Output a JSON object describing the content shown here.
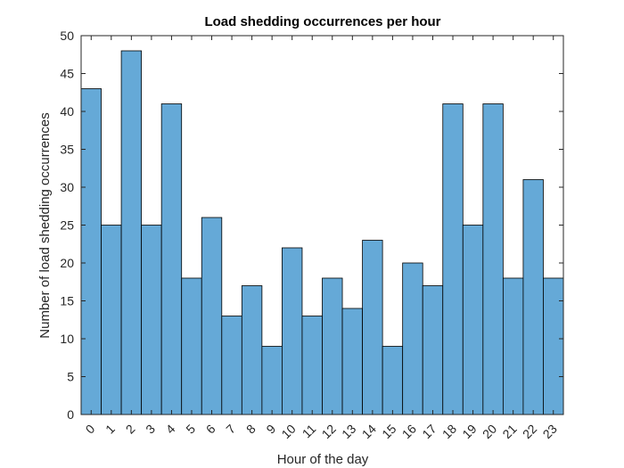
{
  "chart_data": {
    "type": "bar",
    "title": "Load shedding occurrences per hour",
    "xlabel": "Hour of the day",
    "ylabel": "Number of load shedding occurrences",
    "categories": [
      "0",
      "1",
      "2",
      "3",
      "4",
      "5",
      "6",
      "7",
      "8",
      "9",
      "10",
      "11",
      "12",
      "13",
      "14",
      "15",
      "16",
      "17",
      "18",
      "19",
      "20",
      "21",
      "22",
      "23"
    ],
    "values": [
      43,
      25,
      48,
      25,
      41,
      18,
      26,
      13,
      17,
      9,
      22,
      13,
      18,
      14,
      23,
      9,
      20,
      17,
      41,
      25,
      41,
      18,
      31,
      18
    ],
    "ylim": [
      0,
      50
    ],
    "yticks": [
      0,
      5,
      10,
      15,
      20,
      25,
      30,
      35,
      40,
      45,
      50
    ],
    "bar_color": "#65a9d7",
    "grid": false
  }
}
